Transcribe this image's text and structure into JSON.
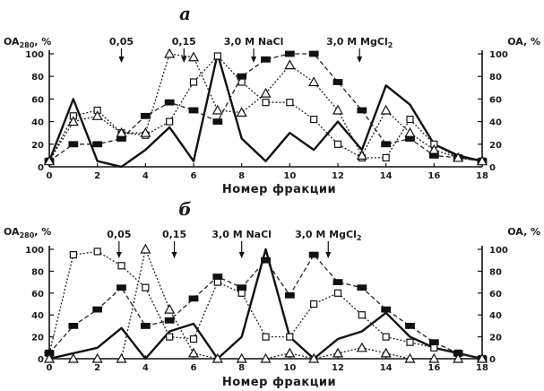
{
  "chart_data": [
    {
      "panel": "а",
      "type": "line",
      "x": [
        0,
        1,
        2,
        3,
        4,
        5,
        6,
        7,
        8,
        9,
        10,
        11,
        12,
        13,
        14,
        15,
        16,
        17,
        18
      ],
      "xlabel": "Номер фракции",
      "ylabel_left": "OA",
      "ylabel_left_sub": "280",
      "ylabel_left_unit": ", %",
      "ylabel_right": "OA, %",
      "ylim": [
        0,
        100
      ],
      "xlim": [
        0,
        18
      ],
      "xticks": [
        0,
        2,
        4,
        6,
        8,
        10,
        12,
        14,
        16,
        18
      ],
      "yticks": [
        0,
        20,
        40,
        60,
        80,
        100
      ],
      "markers": [
        {
          "x": 3,
          "label": "0,05"
        },
        {
          "x": 5.6,
          "label": "0,15"
        },
        {
          "x": 8.5,
          "label": "3,0 M NaCl"
        },
        {
          "x": 12.9,
          "label": "3,0 M MgCl",
          "sub": "2"
        }
      ],
      "series": [
        {
          "style": "solid",
          "values": [
            5,
            60,
            5,
            0,
            15,
            35,
            5,
            100,
            25,
            5,
            30,
            15,
            40,
            15,
            72,
            55,
            20,
            10,
            5
          ]
        },
        {
          "style": "dotted-open-square",
          "values": [
            5,
            45,
            50,
            30,
            28,
            40,
            75,
            98,
            75,
            57,
            57,
            42,
            20,
            8,
            8,
            42,
            20,
            8,
            5
          ]
        },
        {
          "style": "dashed-filled-square",
          "values": [
            5,
            20,
            20,
            25,
            45,
            57,
            50,
            40,
            80,
            95,
            100,
            100,
            75,
            50,
            20,
            25,
            10,
            8,
            5
          ]
        },
        {
          "style": "dotted-open-triangle",
          "values": [
            5,
            40,
            45,
            30,
            30,
            100,
            97,
            50,
            48,
            65,
            90,
            75,
            50,
            10,
            50,
            30,
            15,
            8,
            5
          ]
        }
      ]
    },
    {
      "panel": "б",
      "type": "line",
      "x": [
        0,
        1,
        2,
        3,
        4,
        5,
        6,
        7,
        8,
        9,
        10,
        11,
        12,
        13,
        14,
        15,
        16,
        17,
        18
      ],
      "xlabel": "Номер фракции",
      "ylabel_left": "OA",
      "ylabel_left_sub": "280",
      "ylabel_left_unit": ", %",
      "ylabel_right": "OA, %",
      "ylim": [
        0,
        100
      ],
      "xlim": [
        0,
        18
      ],
      "xticks": [
        0,
        2,
        4,
        6,
        8,
        10,
        12,
        14,
        16,
        18
      ],
      "yticks": [
        0,
        20,
        40,
        60,
        80,
        100
      ],
      "markers": [
        {
          "x": 2.9,
          "label": "0,05"
        },
        {
          "x": 5.2,
          "label": "0,15"
        },
        {
          "x": 8,
          "label": "3,0 M NaCl"
        },
        {
          "x": 11.6,
          "label": "3,0 M MgCl",
          "sub": "2"
        }
      ],
      "series": [
        {
          "style": "solid",
          "values": [
            0,
            5,
            10,
            28,
            0,
            25,
            32,
            0,
            20,
            100,
            20,
            0,
            18,
            25,
            42,
            20,
            10,
            5,
            0
          ]
        },
        {
          "style": "dotted-open-square",
          "values": [
            5,
            95,
            98,
            85,
            65,
            20,
            18,
            70,
            60,
            20,
            20,
            50,
            60,
            40,
            20,
            15,
            10,
            5,
            0
          ]
        },
        {
          "style": "dashed-filled-square",
          "values": [
            5,
            30,
            45,
            65,
            30,
            35,
            55,
            75,
            65,
            90,
            58,
            95,
            70,
            65,
            45,
            30,
            15,
            5,
            0
          ]
        },
        {
          "style": "dotted-open-triangle",
          "values": [
            0,
            0,
            0,
            0,
            100,
            45,
            5,
            0,
            0,
            0,
            5,
            0,
            5,
            10,
            5,
            0,
            0,
            0,
            0
          ]
        }
      ]
    }
  ]
}
